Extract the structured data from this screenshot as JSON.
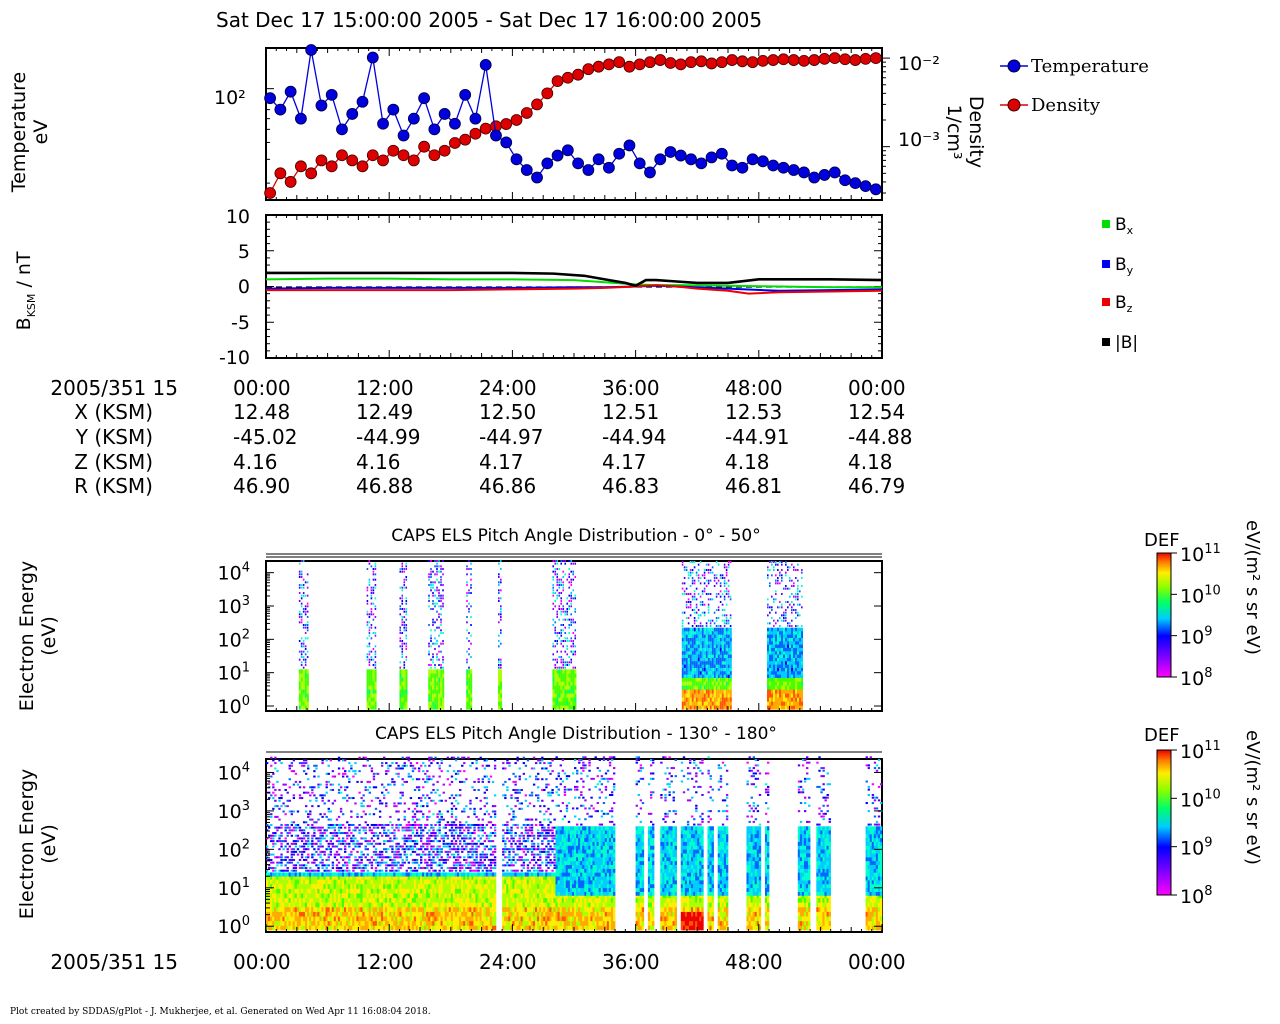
{
  "header": {
    "title": "Sat Dec 17 15:00:00 2005 - Sat Dec 17 16:00:00 2005"
  },
  "panels": {
    "temperature": {
      "ylabel_line1": "Temperature",
      "ylabel_line2": "eV",
      "y2label_line1": "Density",
      "y2label_line2": "1/cm³"
    },
    "bfield": {
      "ylabel": "B",
      "ylabel_sub": "KSM",
      "ylabel_unit": " / nT"
    },
    "pad1": {
      "title": "CAPS ELS Pitch Angle Distribution - 0° - 50°",
      "ylabel_line1": "Electron Energy",
      "ylabel_line2": "(eV)"
    },
    "pad2": {
      "title": "CAPS ELS Pitch Angle Distribution - 130° - 180°",
      "ylabel_line1": "Electron Energy",
      "ylabel_line2": "(eV)"
    },
    "colorbar": {
      "label": "DEF",
      "unit_line": "eV/(m² s sr eV)",
      "ticks": [
        "10¹¹",
        "10¹⁰",
        "10⁹",
        "10⁸"
      ]
    }
  },
  "legend": {
    "temperature": "Temperature",
    "density": "Density",
    "bx": "B",
    "bx_sub": "x",
    "by": "B",
    "by_sub": "y",
    "bz": "B",
    "bz_sub": "z",
    "bmag": "|B|"
  },
  "ephemeris": {
    "row_labels": [
      "2005/351 15",
      "X (KSM)",
      "Y (KSM)",
      "Z (KSM)",
      "R (KSM)"
    ],
    "columns": [
      [
        "00:00",
        "12.48",
        "-45.02",
        "4.16",
        "46.90"
      ],
      [
        "12:00",
        "12.49",
        "-44.99",
        "4.16",
        "46.88"
      ],
      [
        "24:00",
        "12.50",
        "-44.97",
        "4.17",
        "46.86"
      ],
      [
        "36:00",
        "12.51",
        "-44.94",
        "4.17",
        "46.83"
      ],
      [
        "48:00",
        "12.53",
        "-44.91",
        "4.18",
        "46.81"
      ],
      [
        "00:00",
        "12.54",
        "-44.88",
        "4.18",
        "46.79"
      ]
    ],
    "bottom_label": "2005/351 15",
    "bottom_ticks": [
      "00:00",
      "12:00",
      "24:00",
      "36:00",
      "48:00",
      "00:00"
    ]
  },
  "colors": {
    "temperature": "#0000dd",
    "density": "#dd0000",
    "bx": "#00dd00",
    "by": "#0000ee",
    "bz": "#ee0000",
    "bmag": "#000000"
  },
  "chart_data": [
    {
      "type": "line",
      "id": "temperature_density",
      "x_minutes_range": [
        0,
        60
      ],
      "series": [
        {
          "name": "Temperature",
          "axis": "left_log_eV",
          "x": [
            0,
            1,
            2,
            3,
            4,
            5,
            6,
            7,
            8,
            9,
            10,
            11,
            12,
            13,
            14,
            15,
            16,
            17,
            18,
            19,
            20,
            21,
            22,
            23,
            24,
            25,
            26,
            27,
            28,
            29,
            30,
            31,
            32,
            33,
            34,
            35,
            36,
            37,
            38,
            39,
            40,
            41,
            42,
            43,
            44,
            45,
            46,
            47,
            48,
            49,
            50,
            51,
            52,
            53,
            54,
            55,
            56,
            57,
            58,
            59
          ],
          "values": [
            85,
            70,
            95,
            60,
            200,
            75,
            90,
            50,
            65,
            80,
            170,
            55,
            70,
            45,
            60,
            85,
            50,
            65,
            55,
            90,
            60,
            150,
            45,
            40,
            30,
            25,
            22,
            28,
            32,
            35,
            28,
            25,
            30,
            26,
            33,
            38,
            28,
            24,
            30,
            34,
            32,
            30,
            28,
            31,
            33,
            27,
            26,
            30,
            29,
            27,
            26,
            25,
            24,
            22,
            23,
            24,
            21,
            20,
            19,
            18
          ]
        },
        {
          "name": "Density",
          "axis": "right_log_cm3",
          "x": [
            0,
            1,
            2,
            3,
            4,
            5,
            6,
            7,
            8,
            9,
            10,
            11,
            12,
            13,
            14,
            15,
            16,
            17,
            18,
            19,
            20,
            21,
            22,
            23,
            24,
            25,
            26,
            27,
            28,
            29,
            30,
            31,
            32,
            33,
            34,
            35,
            36,
            37,
            38,
            39,
            40,
            41,
            42,
            43,
            44,
            45,
            46,
            47,
            48,
            49,
            50,
            51,
            52,
            53,
            54,
            55,
            56,
            57,
            58,
            59
          ],
          "values": [
            0.0003,
            0.0005,
            0.0004,
            0.0006,
            0.0005,
            0.0007,
            0.0006,
            0.0008,
            0.0007,
            0.0006,
            0.0008,
            0.0007,
            0.0009,
            0.0008,
            0.0007,
            0.001,
            0.0008,
            0.0009,
            0.0011,
            0.0012,
            0.0014,
            0.0016,
            0.0017,
            0.0018,
            0.002,
            0.0024,
            0.003,
            0.004,
            0.0055,
            0.006,
            0.0065,
            0.0075,
            0.008,
            0.0085,
            0.009,
            0.008,
            0.0085,
            0.009,
            0.0095,
            0.0088,
            0.0085,
            0.009,
            0.0092,
            0.0087,
            0.009,
            0.0095,
            0.0092,
            0.009,
            0.0093,
            0.0095,
            0.0097,
            0.0095,
            0.0093,
            0.0095,
            0.0098,
            0.01,
            0.0097,
            0.0095,
            0.0098,
            0.01
          ]
        }
      ],
      "ylim_left": [
        15,
        200
      ],
      "ylim_right": [
        0.00025,
        0.013
      ],
      "ytick_left": [
        "10²"
      ],
      "ytick_right": [
        "10⁻²",
        "10⁻³"
      ]
    },
    {
      "type": "line",
      "id": "magnetic_field",
      "x_minutes_range": [
        0,
        60
      ],
      "ylim": [
        -10,
        10
      ],
      "yticks": [
        "10",
        "5",
        "0",
        "-5",
        "-10"
      ],
      "zero_line": "dashed",
      "series": [
        {
          "name": "Bx",
          "x": [
            0,
            6,
            12,
            18,
            24,
            30,
            33,
            36,
            38,
            40,
            45,
            50,
            55,
            60
          ],
          "values": [
            1.0,
            1.1,
            1.1,
            1.0,
            1.0,
            0.9,
            0.6,
            0.3,
            0.2,
            0.2,
            0.1,
            0.0,
            -0.1,
            -0.1
          ]
        },
        {
          "name": "By",
          "x": [
            0,
            6,
            12,
            18,
            24,
            30,
            33,
            36,
            38,
            40,
            45,
            50,
            55,
            60
          ],
          "values": [
            -0.3,
            -0.2,
            -0.2,
            -0.2,
            -0.2,
            -0.1,
            -0.1,
            0.0,
            0.1,
            0.0,
            -0.3,
            -0.6,
            -0.5,
            -0.4
          ]
        },
        {
          "name": "Bz",
          "x": [
            0,
            6,
            12,
            18,
            24,
            30,
            33,
            36,
            38,
            40,
            42,
            45,
            47,
            50,
            55,
            60
          ],
          "values": [
            -0.5,
            -0.5,
            -0.5,
            -0.5,
            -0.4,
            -0.3,
            -0.2,
            0.0,
            0.2,
            0.0,
            -0.3,
            -0.6,
            -1.0,
            -0.8,
            -0.7,
            -0.6
          ]
        },
        {
          "name": "|B|",
          "x": [
            0,
            6,
            12,
            18,
            24,
            28,
            31,
            33,
            35,
            36,
            37,
            38,
            40,
            42,
            45,
            48,
            52,
            55,
            60
          ],
          "values": [
            1.9,
            1.9,
            1.9,
            1.9,
            1.9,
            1.8,
            1.5,
            1.0,
            0.5,
            0.1,
            0.9,
            0.9,
            0.7,
            0.5,
            0.5,
            1.0,
            1.0,
            1.0,
            0.9
          ]
        }
      ]
    },
    {
      "type": "heatmap",
      "id": "pad_0_50",
      "x_minutes_range": [
        0,
        60
      ],
      "y_energy_ticks": [
        "10⁴",
        "10³",
        "10²",
        "10¹",
        "10⁰"
      ],
      "bursts_minutes": [
        [
          3.2,
          4.0
        ],
        [
          9.8,
          10.6
        ],
        [
          13.0,
          13.6
        ],
        [
          15.8,
          17.2
        ],
        [
          19.5,
          20.0
        ],
        [
          22.6,
          22.8
        ],
        [
          27.9,
          30.2
        ],
        [
          40.5,
          45.2
        ],
        [
          48.8,
          52.2
        ]
      ],
      "colorbar": {
        "label": "DEF",
        "range_log10": [
          8,
          11
        ]
      }
    },
    {
      "type": "heatmap",
      "id": "pad_130_180",
      "x_minutes_range": [
        0,
        60
      ],
      "y_energy_ticks": [
        "10⁴",
        "10³",
        "10²",
        "10¹",
        "10⁰"
      ],
      "gaps_minutes": [
        [
          22.2,
          22.8
        ],
        [
          33.8,
          35.8
        ],
        [
          36.6,
          37.0
        ],
        [
          37.8,
          38.3
        ],
        [
          39.9,
          40.3
        ],
        [
          42.5,
          43.0
        ],
        [
          43.5,
          43.9
        ],
        [
          44.9,
          46.8
        ],
        [
          48.2,
          48.6
        ],
        [
          48.9,
          51.7
        ],
        [
          53.0,
          53.5
        ],
        [
          55.0,
          58.3
        ]
      ],
      "colorbar": {
        "label": "DEF",
        "range_log10": [
          8,
          11
        ]
      }
    }
  ],
  "footer": {
    "text": "Plot created by SDDAS/gPlot - J. Mukherjee, et al.  Generated on Wed Apr 11 16:08:04 2018."
  }
}
